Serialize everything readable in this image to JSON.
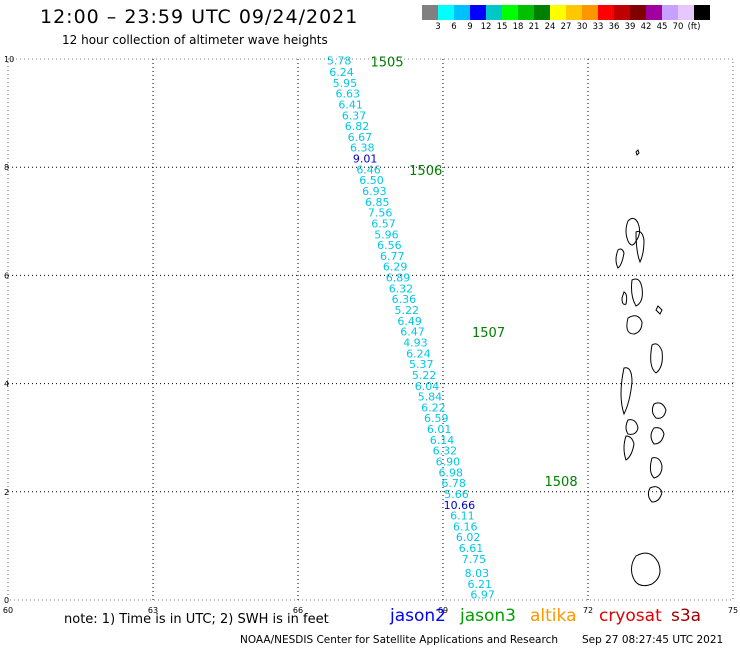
{
  "title": "12:00 – 23:59 UTC 09/24/2021",
  "subtitle": "12 hour collection of altimeter wave heights",
  "legend": {
    "colors": [
      "#808080",
      "#00ffff",
      "#00c0ff",
      "#0000ff",
      "#00c8c8",
      "#00ff00",
      "#00c000",
      "#008000",
      "#ffff00",
      "#ffc800",
      "#ff9600",
      "#ff0000",
      "#c00000",
      "#800000",
      "#a000a0",
      "#c8a0ff",
      "#e6c8ff",
      "#000000"
    ],
    "labels": [
      "3",
      "6",
      "9",
      "12",
      "15",
      "18",
      "21",
      "24",
      "27",
      "30",
      "33",
      "36",
      "39",
      "42",
      "45",
      "70",
      "(ft)"
    ],
    "unit": "(ft)"
  },
  "axes": {
    "x_ticks": [
      "60",
      "63",
      "66",
      "69",
      "72",
      "75"
    ],
    "y_ticks": [
      "0",
      "2",
      "4",
      "6",
      "8",
      "10"
    ],
    "xlim": [
      60,
      75
    ],
    "ylim": [
      0,
      10
    ]
  },
  "track_labels": [
    {
      "text": "1505",
      "lon": 67.5,
      "lat": 9.95
    },
    {
      "text": "1506",
      "lon": 68.3,
      "lat": 7.95
    },
    {
      "text": "1507",
      "lon": 69.6,
      "lat": 4.95
    },
    {
      "text": "1508",
      "lon": 71.1,
      "lat": 2.2
    }
  ],
  "observations": [
    {
      "lon": 66.85,
      "lat": 9.97,
      "swh": "5.78",
      "color": "#00c8e6"
    },
    {
      "lon": 66.9,
      "lat": 9.76,
      "swh": "6.24",
      "color": "#00c8e6"
    },
    {
      "lon": 66.97,
      "lat": 9.56,
      "swh": "5.95",
      "color": "#00c8e6"
    },
    {
      "lon": 67.03,
      "lat": 9.36,
      "swh": "6.63",
      "color": "#00c8e6"
    },
    {
      "lon": 67.09,
      "lat": 9.16,
      "swh": "6.41",
      "color": "#00c8e6"
    },
    {
      "lon": 67.16,
      "lat": 8.96,
      "swh": "6.37",
      "color": "#00c8e6"
    },
    {
      "lon": 67.22,
      "lat": 8.76,
      "swh": "6.82",
      "color": "#00c8e6"
    },
    {
      "lon": 67.28,
      "lat": 8.56,
      "swh": "6.67",
      "color": "#00c8e6"
    },
    {
      "lon": 67.33,
      "lat": 8.36,
      "swh": "6.38",
      "color": "#00c8e6"
    },
    {
      "lon": 67.39,
      "lat": 8.16,
      "swh": "9.01",
      "color": "#0000c8"
    },
    {
      "lon": 67.46,
      "lat": 7.96,
      "swh": "6.46",
      "color": "#00c8e6"
    },
    {
      "lon": 67.52,
      "lat": 7.76,
      "swh": "6.50",
      "color": "#00c8e6"
    },
    {
      "lon": 67.58,
      "lat": 7.56,
      "swh": "6.93",
      "color": "#00c8e6"
    },
    {
      "lon": 67.64,
      "lat": 7.36,
      "swh": "6.85",
      "color": "#00c8e6"
    },
    {
      "lon": 67.7,
      "lat": 7.16,
      "swh": "7.56",
      "color": "#00c8e6"
    },
    {
      "lon": 67.77,
      "lat": 6.96,
      "swh": "6.57",
      "color": "#00c8e6"
    },
    {
      "lon": 67.83,
      "lat": 6.76,
      "swh": "5.96",
      "color": "#00c8e6"
    },
    {
      "lon": 67.89,
      "lat": 6.56,
      "swh": "6.56",
      "color": "#00c8e6"
    },
    {
      "lon": 67.95,
      "lat": 6.36,
      "swh": "6.77",
      "color": "#00c8e6"
    },
    {
      "lon": 68.01,
      "lat": 6.16,
      "swh": "6.29",
      "color": "#00c8e6"
    },
    {
      "lon": 68.07,
      "lat": 5.96,
      "swh": "6.89",
      "color": "#00c8e6"
    },
    {
      "lon": 68.13,
      "lat": 5.76,
      "swh": "6.32",
      "color": "#00c8e6"
    },
    {
      "lon": 68.19,
      "lat": 5.56,
      "swh": "6.36",
      "color": "#00c8e6"
    },
    {
      "lon": 68.25,
      "lat": 5.36,
      "swh": "5.22",
      "color": "#00c8e6"
    },
    {
      "lon": 68.31,
      "lat": 5.16,
      "swh": "6.49",
      "color": "#00c8e6"
    },
    {
      "lon": 68.37,
      "lat": 4.96,
      "swh": "6.47",
      "color": "#00c8e6"
    },
    {
      "lon": 68.43,
      "lat": 4.76,
      "swh": "4.93",
      "color": "#00c8e6"
    },
    {
      "lon": 68.49,
      "lat": 4.56,
      "swh": "6.24",
      "color": "#00c8e6"
    },
    {
      "lon": 68.55,
      "lat": 4.36,
      "swh": "5.37",
      "color": "#00c8e6"
    },
    {
      "lon": 68.61,
      "lat": 4.16,
      "swh": "5.22",
      "color": "#00c8e6"
    },
    {
      "lon": 68.67,
      "lat": 3.96,
      "swh": "6.04",
      "color": "#00c8e6"
    },
    {
      "lon": 68.73,
      "lat": 3.76,
      "swh": "5.84",
      "color": "#00c8e6"
    },
    {
      "lon": 68.8,
      "lat": 3.56,
      "swh": "6.22",
      "color": "#00c8e6"
    },
    {
      "lon": 68.86,
      "lat": 3.36,
      "swh": "6.59",
      "color": "#00c8e6"
    },
    {
      "lon": 68.92,
      "lat": 3.16,
      "swh": "6.01",
      "color": "#00c8e6"
    },
    {
      "lon": 68.98,
      "lat": 2.96,
      "swh": "6.14",
      "color": "#00c8e6"
    },
    {
      "lon": 69.04,
      "lat": 2.76,
      "swh": "6.32",
      "color": "#00c8e6"
    },
    {
      "lon": 69.1,
      "lat": 2.56,
      "swh": "6.90",
      "color": "#00c8e6"
    },
    {
      "lon": 69.16,
      "lat": 2.36,
      "swh": "6.98",
      "color": "#00c8e6"
    },
    {
      "lon": 69.22,
      "lat": 2.16,
      "swh": "6.78",
      "color": "#00c8e6"
    },
    {
      "lon": 69.28,
      "lat": 1.96,
      "swh": "5.66",
      "color": "#00c8e6"
    },
    {
      "lon": 69.34,
      "lat": 1.76,
      "swh": "10.66",
      "color": "#0000c8"
    },
    {
      "lon": 69.4,
      "lat": 1.56,
      "swh": "6.11",
      "color": "#00c8e6"
    },
    {
      "lon": 69.46,
      "lat": 1.36,
      "swh": "6.16",
      "color": "#00c8e6"
    },
    {
      "lon": 69.52,
      "lat": 1.16,
      "swh": "6.02",
      "color": "#00c8e6"
    },
    {
      "lon": 69.58,
      "lat": 0.96,
      "swh": "6.61",
      "color": "#00c8e6"
    },
    {
      "lon": 69.64,
      "lat": 0.76,
      "swh": "7.75",
      "color": "#00c8e6"
    },
    {
      "lon": 69.7,
      "lat": 0.5,
      "swh": "8.03",
      "color": "#00c8e6"
    },
    {
      "lon": 69.76,
      "lat": 0.3,
      "swh": "6.21",
      "color": "#00c8e6"
    },
    {
      "lon": 69.82,
      "lat": 0.1,
      "swh": "6.97",
      "color": "#00c8e6"
    }
  ],
  "note": "note:  1) Time is in UTC;  2) SWH is in feet",
  "satellites": [
    {
      "name": "jason2",
      "color": "#0000ff"
    },
    {
      "name": "jason3",
      "color": "#00a000"
    },
    {
      "name": "altika",
      "color": "#ff9600"
    },
    {
      "name": "cryosat",
      "color": "#e00000"
    },
    {
      "name": "s3a",
      "color": "#a00000"
    }
  ],
  "footer": {
    "org": "NOAA/NESDIS Center for Satellite Applications and Research",
    "timestamp": "Sep 27 08:27:45 UTC 2021"
  }
}
